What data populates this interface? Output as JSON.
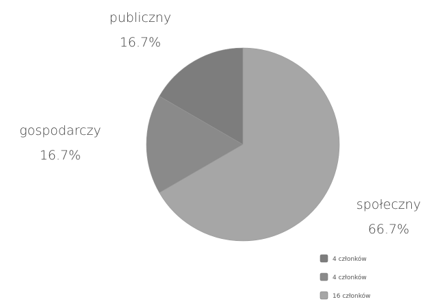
{
  "chart_data": {
    "type": "pie",
    "slices": [
      {
        "category": "publiczny",
        "value": 4,
        "percent": "16.7%",
        "color": "#7d7d7d"
      },
      {
        "category": "gospodarczy",
        "value": 4,
        "percent": "16.7%",
        "color": "#8a8a8a"
      },
      {
        "category": "społeczny",
        "value": 16,
        "percent": "66.7%",
        "color": "#a6a6a6"
      }
    ],
    "legend": {
      "position": "bottom-right",
      "entries": [
        "4 członków",
        "4 członków",
        "16 członków"
      ]
    }
  }
}
